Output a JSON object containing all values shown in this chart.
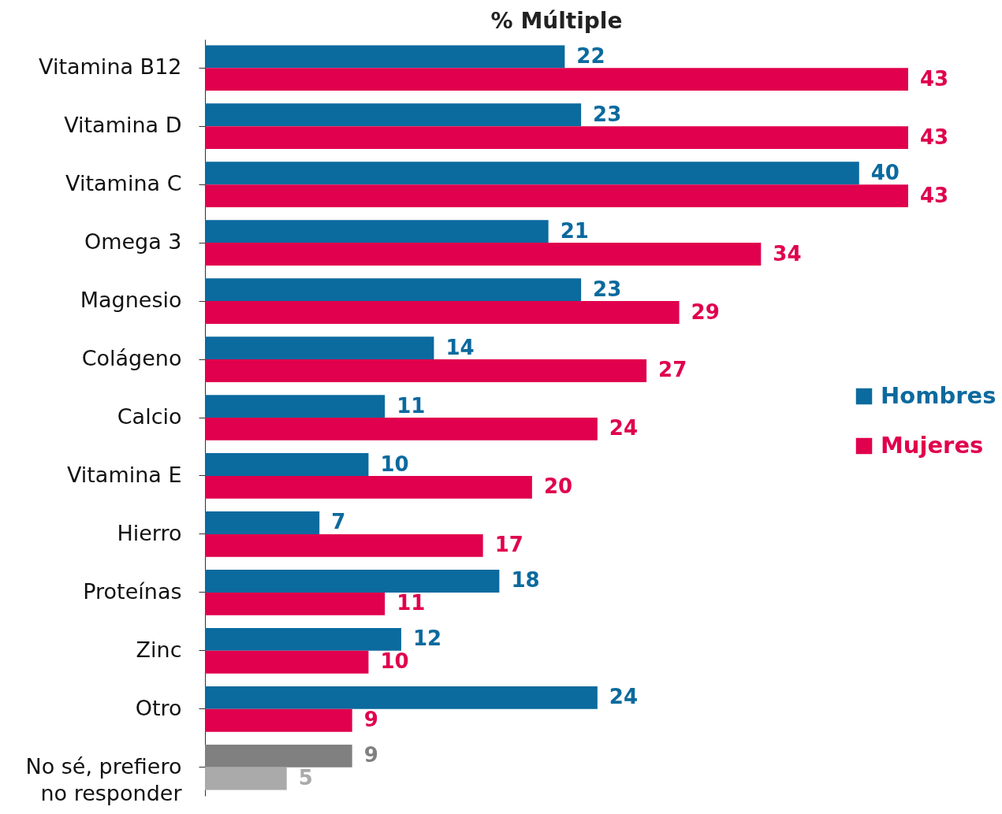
{
  "chart_data": {
    "type": "bar",
    "orientation": "horizontal",
    "title": "% Múltiple",
    "categories": [
      "Vitamina B12",
      "Vitamina D",
      "Vitamina C",
      "Omega 3",
      "Magnesio",
      "Colágeno",
      "Calcio",
      "Vitamina E",
      "Hierro",
      "Proteínas",
      "Zinc",
      "Otro",
      "No sé, prefiero\nno responder"
    ],
    "series": [
      {
        "name": "Hombres",
        "color": "#0b6a9e",
        "colors": [
          "#0b6a9e",
          "#0b6a9e",
          "#0b6a9e",
          "#0b6a9e",
          "#0b6a9e",
          "#0b6a9e",
          "#0b6a9e",
          "#0b6a9e",
          "#0b6a9e",
          "#0b6a9e",
          "#0b6a9e",
          "#0b6a9e",
          "#808080"
        ],
        "values": [
          22,
          23,
          40,
          21,
          23,
          14,
          11,
          10,
          7,
          18,
          12,
          24,
          9
        ]
      },
      {
        "name": "Mujeres",
        "color": "#e0004d",
        "colors": [
          "#e0004d",
          "#e0004d",
          "#e0004d",
          "#e0004d",
          "#e0004d",
          "#e0004d",
          "#e0004d",
          "#e0004d",
          "#e0004d",
          "#e0004d",
          "#e0004d",
          "#e0004d",
          "#aaaaaa"
        ],
        "values": [
          43,
          43,
          43,
          34,
          29,
          27,
          24,
          20,
          17,
          11,
          10,
          9,
          5
        ]
      }
    ],
    "data_labels": true,
    "legend": "right"
  }
}
